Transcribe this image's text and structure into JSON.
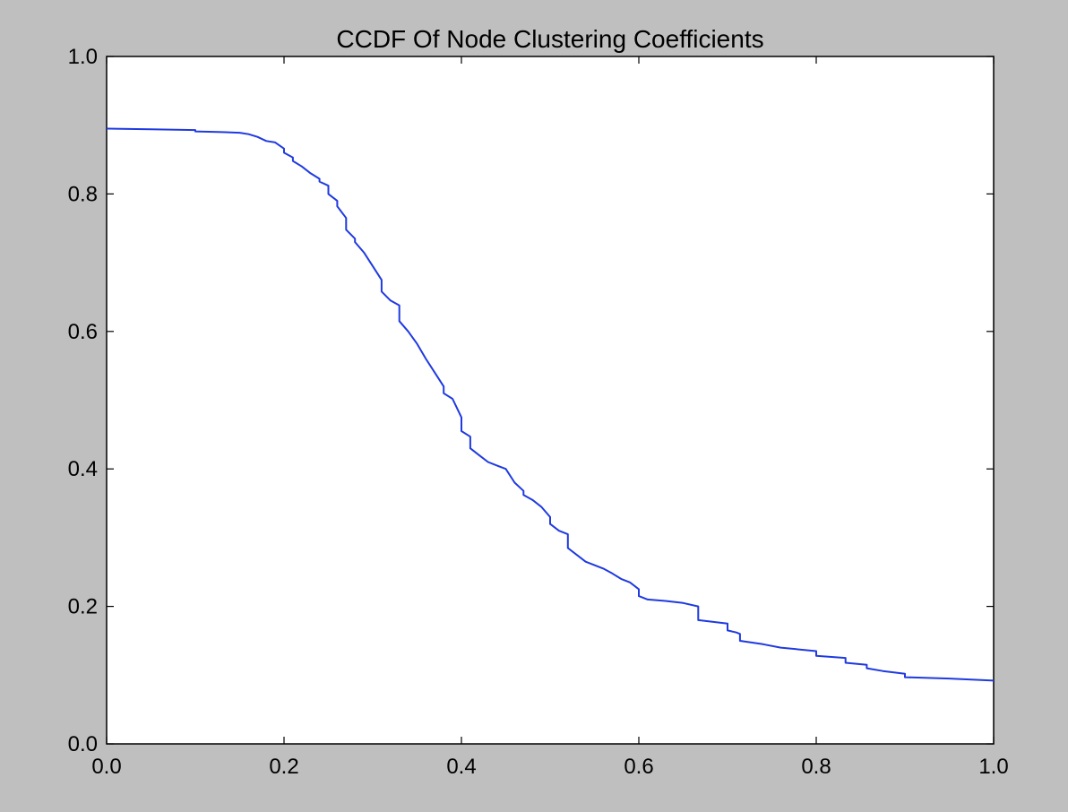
{
  "chart_data": {
    "type": "line",
    "title": "CCDF Of Node Clustering Coefficients",
    "xlabel": "",
    "ylabel": "",
    "xlim": [
      0.0,
      1.0
    ],
    "ylim": [
      0.0,
      1.0
    ],
    "grid": false,
    "legend": "none",
    "x_ticks": [
      "0.0",
      "0.2",
      "0.4",
      "0.6",
      "0.8",
      "1.0"
    ],
    "y_ticks": [
      "0.0",
      "0.2",
      "0.4",
      "0.6",
      "0.8",
      "1.0"
    ],
    "colors": {
      "line": "#1f3ae0",
      "background": "#bfbfbf",
      "plot_area": "#ffffff",
      "axes": "#000000"
    },
    "series": [
      {
        "x": [
          0.0,
          0.05,
          0.1,
          0.1,
          0.13,
          0.15,
          0.16,
          0.17,
          0.18,
          0.19,
          0.2,
          0.2,
          0.21,
          0.21,
          0.22,
          0.23,
          0.24,
          0.24,
          0.25,
          0.25,
          0.26,
          0.26,
          0.27,
          0.27,
          0.28,
          0.28,
          0.29,
          0.3,
          0.31,
          0.31,
          0.32,
          0.33,
          0.33,
          0.34,
          0.35,
          0.36,
          0.37,
          0.38,
          0.38,
          0.39,
          0.4,
          0.4,
          0.41,
          0.41,
          0.42,
          0.43,
          0.44,
          0.45,
          0.46,
          0.47,
          0.47,
          0.48,
          0.49,
          0.5,
          0.5,
          0.51,
          0.52,
          0.52,
          0.53,
          0.54,
          0.55,
          0.56,
          0.57,
          0.58,
          0.59,
          0.6,
          0.6,
          0.61,
          0.63,
          0.65,
          0.667,
          0.667,
          0.7,
          0.7,
          0.71,
          0.714,
          0.714,
          0.74,
          0.76,
          0.8,
          0.8,
          0.833,
          0.833,
          0.857,
          0.857,
          0.875,
          0.9,
          0.9,
          0.95,
          1.0
        ],
        "y": [
          0.895,
          0.894,
          0.893,
          0.891,
          0.89,
          0.889,
          0.887,
          0.883,
          0.877,
          0.875,
          0.866,
          0.86,
          0.853,
          0.848,
          0.84,
          0.83,
          0.822,
          0.818,
          0.812,
          0.8,
          0.79,
          0.782,
          0.765,
          0.748,
          0.735,
          0.73,
          0.715,
          0.695,
          0.675,
          0.658,
          0.645,
          0.638,
          0.615,
          0.6,
          0.582,
          0.56,
          0.54,
          0.52,
          0.51,
          0.502,
          0.475,
          0.455,
          0.447,
          0.43,
          0.42,
          0.41,
          0.405,
          0.4,
          0.38,
          0.368,
          0.362,
          0.355,
          0.345,
          0.33,
          0.32,
          0.31,
          0.305,
          0.285,
          0.275,
          0.265,
          0.26,
          0.255,
          0.248,
          0.24,
          0.235,
          0.225,
          0.215,
          0.21,
          0.208,
          0.205,
          0.2,
          0.18,
          0.175,
          0.165,
          0.162,
          0.16,
          0.15,
          0.145,
          0.14,
          0.135,
          0.128,
          0.125,
          0.118,
          0.115,
          0.11,
          0.106,
          0.102,
          0.097,
          0.095,
          0.092
        ]
      }
    ]
  }
}
